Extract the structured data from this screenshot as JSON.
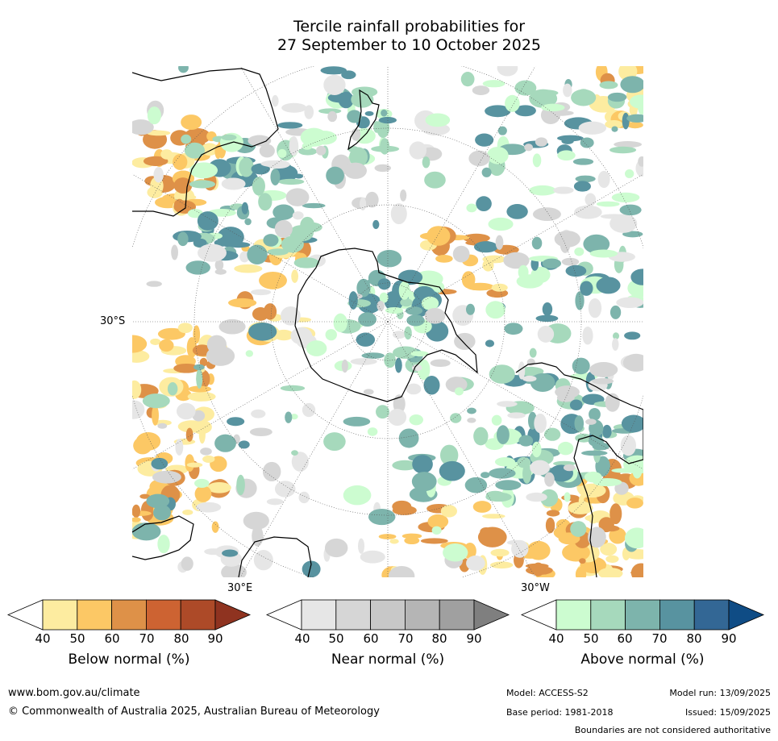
{
  "title_line1": "Tercile rainfall probabilities for",
  "title_line2": "27 September to 10 October 2025",
  "map_labels": {
    "lat_30s": "30°S",
    "lon_30e": "30°E",
    "lon_30w": "30°W"
  },
  "colorbars": [
    {
      "name": "Below normal (%)",
      "ticks": [
        "40",
        "50",
        "60",
        "70",
        "80",
        "90"
      ],
      "colors": [
        "#ffffff",
        "#fdeca0",
        "#fcc865",
        "#de9148",
        "#cd6332",
        "#ad4a28",
        "#8f3320"
      ]
    },
    {
      "name": "Near normal (%)",
      "ticks": [
        "40",
        "50",
        "60",
        "70",
        "80",
        "90"
      ],
      "colors": [
        "#ffffff",
        "#e6e6e6",
        "#d6d6d6",
        "#c8c8c8",
        "#b5b5b5",
        "#a0a0a0",
        "#7f7f7f"
      ]
    },
    {
      "name": "Above normal (%)",
      "ticks": [
        "40",
        "50",
        "60",
        "70",
        "80",
        "90"
      ],
      "colors": [
        "#ffffff",
        "#ccfcd0",
        "#a6d9bc",
        "#7db4ac",
        "#5893a0",
        "#336795",
        "#0f4c85"
      ]
    }
  ],
  "footer": {
    "website": "www.bom.gov.au/climate",
    "copyright": "© Commonwealth of Australia 2025, Australian Bureau of Meteorology",
    "model": "Model: ACCESS-S2",
    "base_period": "Base period: 1981-2018",
    "model_run": "Model run: 13/09/2025",
    "issued": "Issued: 15/09/2025",
    "disclaimer": "Boundaries are not considered authoritative"
  }
}
